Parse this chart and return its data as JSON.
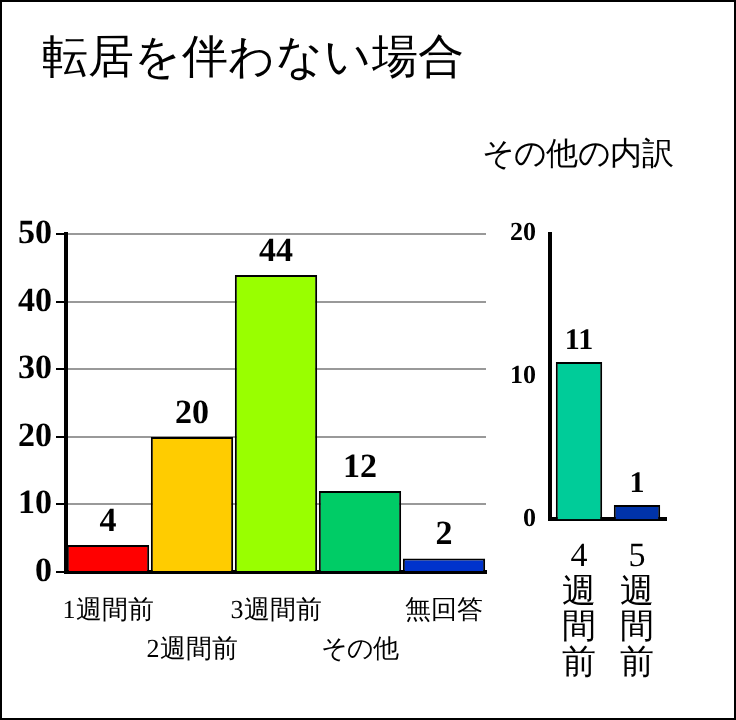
{
  "chart_data": [
    {
      "type": "bar",
      "title": "転居を伴わない場合",
      "categories": [
        "1週間前",
        "2週間前",
        "3週間前",
        "その他",
        "無回答"
      ],
      "values": [
        4,
        20,
        44,
        12,
        2
      ],
      "colors": [
        "#ff0000",
        "#ffcc00",
        "#99ff00",
        "#00cc66",
        "#0033cc"
      ],
      "ylim": [
        0,
        50
      ],
      "yticks": [
        0,
        10,
        20,
        30,
        40,
        50
      ],
      "grid": "y",
      "data_labels": true
    },
    {
      "type": "bar",
      "title": "その他の内訳",
      "categories": [
        "4週間前",
        "5週間前"
      ],
      "values": [
        11,
        1
      ],
      "colors": [
        "#00cc99",
        "#0033aa"
      ],
      "ylim": [
        0,
        20
      ],
      "yticks": [
        0,
        10,
        20
      ],
      "data_labels": true
    }
  ]
}
